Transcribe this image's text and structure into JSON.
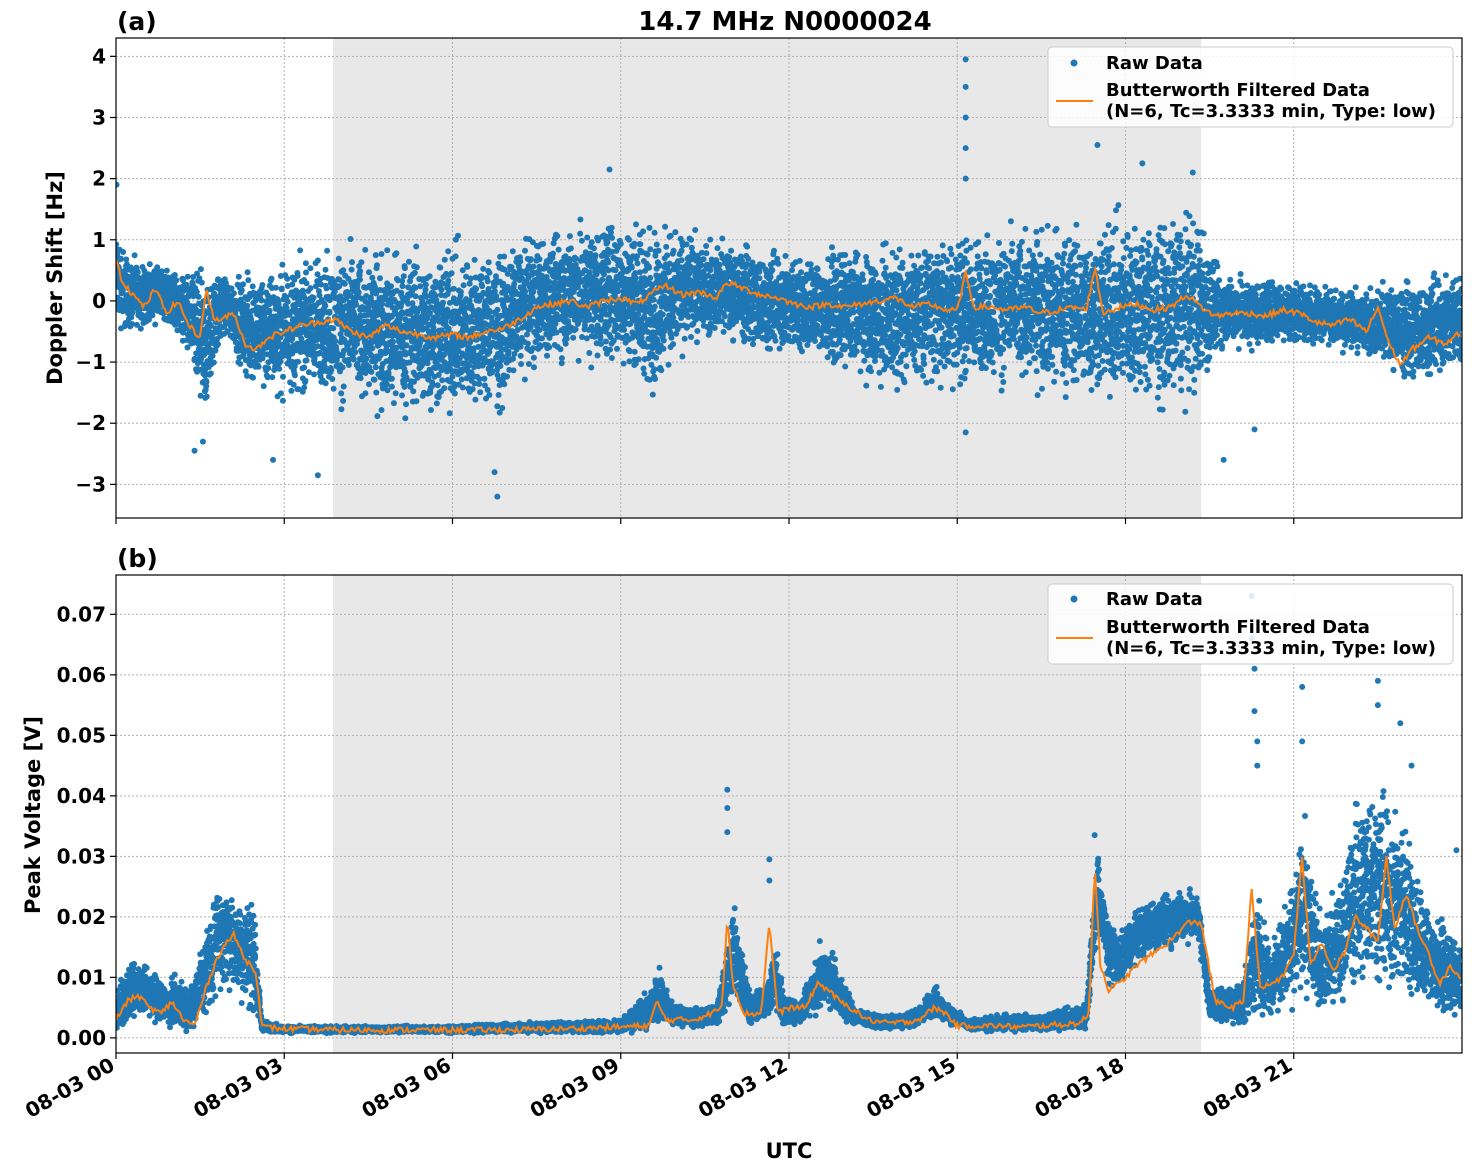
{
  "figure": {
    "title": "14.7 MHz N0000024",
    "xlabel": "UTC",
    "xticks": [
      "08-03 00",
      "08-03 03",
      "08-03 06",
      "08-03 09",
      "08-03 12",
      "08-03 15",
      "08-03 18",
      "08-03 21"
    ],
    "colors": {
      "raw": "#1f77b4",
      "filtered": "#ff7f0e",
      "shade": "#e8e8e8",
      "grid": "#b0b0b0"
    }
  },
  "legend": {
    "raw_label": "Raw Data",
    "filtered_label_line1": "Butterworth Filtered Data",
    "filtered_label_line2": "(N=6, Tc=3.3333 min, Type: low)"
  },
  "chart_data": [
    {
      "type": "scatter",
      "panel_label": "(a)",
      "title": "14.7 MHz N0000024",
      "xlabel": "",
      "ylabel": "Doppler Shift [Hz]",
      "x_unit": "hours UTC on 08-03",
      "xlim": [
        0,
        24
      ],
      "ylim": [
        -3.55,
        4.3
      ],
      "yticks": [
        -3,
        -2,
        -1,
        0,
        1,
        2,
        3,
        4
      ],
      "ytick_labels": [
        "−3",
        "−2",
        "−1",
        "0",
        "1",
        "2",
        "3",
        "4"
      ],
      "shaded_interval": [
        3.87,
        19.35
      ],
      "grid": true,
      "legend_position": "top-right",
      "series": [
        {
          "name": "Raw Data",
          "kind": "scatter-band",
          "x": [
            0,
            0.2,
            0.5,
            0.9,
            1.2,
            1.5,
            1.6,
            1.75,
            1.9,
            2.1,
            2.3,
            2.6,
            3.0,
            3.5,
            4.0,
            4.5,
            5.0,
            5.5,
            6.0,
            6.5,
            6.8,
            7.2,
            7.7,
            8.2,
            8.8,
            9.3,
            9.6,
            10.0,
            10.4,
            10.8,
            11.2,
            11.6,
            12.0,
            12.5,
            13.0,
            13.5,
            14.0,
            14.5,
            15.0,
            15.5,
            16.0,
            16.5,
            17.0,
            17.5,
            18.0,
            18.5,
            19.0,
            19.4,
            19.7,
            20.2,
            20.8,
            21.3,
            21.8,
            22.2,
            22.6,
            23.0,
            23.5,
            24.0
          ],
          "low": [
            -0.5,
            -0.6,
            -0.4,
            -0.4,
            -0.7,
            -1.9,
            -2.1,
            -1.2,
            -0.6,
            -0.8,
            -1.4,
            -1.6,
            -1.6,
            -1.6,
            -1.7,
            -1.8,
            -1.9,
            -2.0,
            -2.0,
            -1.9,
            -1.9,
            -1.2,
            -1.1,
            -1.0,
            -1.1,
            -1.2,
            -1.6,
            -0.9,
            -0.7,
            -0.6,
            -0.8,
            -0.9,
            -0.9,
            -1.0,
            -1.2,
            -1.4,
            -1.5,
            -1.4,
            -1.5,
            -1.4,
            -1.4,
            -1.5,
            -1.6,
            -1.7,
            -1.8,
            -1.8,
            -1.7,
            -1.5,
            -0.8,
            -0.8,
            -0.7,
            -0.7,
            -0.8,
            -0.9,
            -1.0,
            -1.4,
            -1.3,
            -1.1
          ],
          "high": [
            1.3,
            0.8,
            0.6,
            0.6,
            0.5,
            0.6,
            0.4,
            0.5,
            0.5,
            0.4,
            0.5,
            0.6,
            0.7,
            0.8,
            0.9,
            0.9,
            0.9,
            1.0,
            1.0,
            0.9,
            0.9,
            1.0,
            1.2,
            1.3,
            1.4,
            1.4,
            1.3,
            1.2,
            1.1,
            1.0,
            1.0,
            0.9,
            0.8,
            0.8,
            0.9,
            0.9,
            1.0,
            1.1,
            1.2,
            1.1,
            1.2,
            1.3,
            1.3,
            1.4,
            1.5,
            1.4,
            1.5,
            1.4,
            0.5,
            0.4,
            0.4,
            0.3,
            0.2,
            0.2,
            0.3,
            0.4,
            0.5,
            0.5
          ],
          "outliers": [
            [
              0.01,
              1.9
            ],
            [
              1.4,
              -2.45
            ],
            [
              1.55,
              -2.3
            ],
            [
              2.8,
              -2.6
            ],
            [
              3.6,
              -2.85
            ],
            [
              6.8,
              -3.2
            ],
            [
              6.75,
              -2.8
            ],
            [
              8.8,
              2.15
            ],
            [
              15.15,
              3.95
            ],
            [
              15.15,
              3.5
            ],
            [
              15.15,
              3.0
            ],
            [
              15.15,
              2.5
            ],
            [
              15.15,
              2.0
            ],
            [
              15.15,
              -2.15
            ],
            [
              17.5,
              2.55
            ],
            [
              18.3,
              2.25
            ],
            [
              19.2,
              2.1
            ],
            [
              19.75,
              -2.6
            ],
            [
              20.3,
              -2.1
            ]
          ]
        },
        {
          "name": "Butterworth Filtered Data (N=6, Tc=3.3333 min, Type: low)",
          "kind": "line",
          "x": [
            0,
            0.1,
            0.3,
            0.5,
            0.7,
            0.9,
            1.1,
            1.3,
            1.5,
            1.6,
            1.75,
            1.9,
            2.1,
            2.3,
            2.5,
            2.7,
            3.0,
            3.3,
            3.6,
            3.9,
            4.2,
            4.5,
            4.8,
            5.1,
            5.4,
            5.7,
            6.0,
            6.3,
            6.6,
            6.9,
            7.2,
            7.5,
            7.8,
            8.1,
            8.4,
            8.7,
            9.0,
            9.3,
            9.6,
            9.8,
            10.1,
            10.4,
            10.7,
            10.9,
            11.2,
            11.5,
            11.8,
            12.1,
            12.4,
            12.7,
            13.0,
            13.3,
            13.6,
            13.9,
            14.2,
            14.5,
            14.8,
            15.0,
            15.15,
            15.3,
            15.6,
            15.9,
            16.2,
            16.5,
            16.8,
            17.1,
            17.3,
            17.45,
            17.6,
            17.9,
            18.2,
            18.5,
            18.8,
            19.1,
            19.35,
            19.6,
            19.9,
            20.2,
            20.5,
            20.8,
            21.1,
            21.4,
            21.7,
            22.0,
            22.3,
            22.5,
            22.7,
            22.9,
            23.1,
            23.4,
            23.7,
            24.0
          ],
          "y": [
            0.7,
            0.35,
            0.1,
            -0.1,
            0.2,
            -0.2,
            0.0,
            -0.4,
            -0.6,
            0.2,
            -0.3,
            -0.3,
            -0.2,
            -0.7,
            -0.8,
            -0.6,
            -0.5,
            -0.4,
            -0.35,
            -0.3,
            -0.5,
            -0.6,
            -0.4,
            -0.5,
            -0.55,
            -0.6,
            -0.55,
            -0.6,
            -0.5,
            -0.45,
            -0.3,
            -0.1,
            -0.05,
            0.0,
            -0.1,
            0.0,
            0.05,
            -0.05,
            0.15,
            0.25,
            0.1,
            0.15,
            0.05,
            0.3,
            0.2,
            0.1,
            0.05,
            -0.05,
            -0.1,
            -0.05,
            -0.1,
            -0.05,
            0.0,
            0.05,
            -0.1,
            -0.05,
            -0.15,
            -0.15,
            0.45,
            -0.1,
            -0.1,
            -0.15,
            -0.1,
            -0.2,
            -0.15,
            -0.1,
            -0.15,
            0.55,
            -0.2,
            -0.1,
            -0.05,
            -0.15,
            -0.1,
            0.1,
            -0.1,
            -0.25,
            -0.2,
            -0.2,
            -0.25,
            -0.15,
            -0.2,
            -0.35,
            -0.4,
            -0.3,
            -0.5,
            -0.1,
            -0.7,
            -1.05,
            -0.8,
            -0.6,
            -0.7,
            -0.5
          ]
        }
      ]
    },
    {
      "type": "scatter",
      "panel_label": "(b)",
      "title": "",
      "xlabel": "UTC",
      "ylabel": "Peak Voltage [V]",
      "x_unit": "hours UTC on 08-03",
      "xlim": [
        0,
        24
      ],
      "ylim": [
        -0.0025,
        0.0765
      ],
      "yticks": [
        0.0,
        0.01,
        0.02,
        0.03,
        0.04,
        0.05,
        0.06,
        0.07
      ],
      "ytick_labels": [
        "0.00",
        "0.01",
        "0.02",
        "0.03",
        "0.04",
        "0.05",
        "0.06",
        "0.07"
      ],
      "shaded_interval": [
        3.87,
        19.35
      ],
      "grid": true,
      "legend_position": "top-right",
      "series": [
        {
          "name": "Raw Data",
          "kind": "scatter-band",
          "x": [
            0,
            0.3,
            0.6,
            0.9,
            1.1,
            1.3,
            1.6,
            1.8,
            2.0,
            2.2,
            2.45,
            2.6,
            3.0,
            4.0,
            5.0,
            6.0,
            7.0,
            8.0,
            9.0,
            9.5,
            9.7,
            9.9,
            10.3,
            10.7,
            10.85,
            11.0,
            11.3,
            11.6,
            11.75,
            11.9,
            12.2,
            12.5,
            12.7,
            12.9,
            13.2,
            13.6,
            14.0,
            14.3,
            14.6,
            14.8,
            15.2,
            15.8,
            16.4,
            17.0,
            17.3,
            17.5,
            17.7,
            17.9,
            18.2,
            18.6,
            19.0,
            19.3,
            19.5,
            19.8,
            20.1,
            20.35,
            20.6,
            20.9,
            21.2,
            21.5,
            21.8,
            22.1,
            22.4,
            22.7,
            23.0,
            23.3,
            23.6,
            23.8,
            24.0
          ],
          "low": [
            0.001,
            0.003,
            0.003,
            0.002,
            0.001,
            0.001,
            0.002,
            0.007,
            0.008,
            0.006,
            0.003,
            0.0008,
            0.0008,
            0.0008,
            0.0008,
            0.0008,
            0.0008,
            0.0008,
            0.0008,
            0.0012,
            0.0025,
            0.002,
            0.0015,
            0.002,
            0.003,
            0.006,
            0.002,
            0.0025,
            0.004,
            0.002,
            0.002,
            0.004,
            0.005,
            0.003,
            0.002,
            0.0015,
            0.0015,
            0.0018,
            0.003,
            0.0025,
            0.0012,
            0.001,
            0.001,
            0.001,
            0.001,
            0.016,
            0.009,
            0.008,
            0.013,
            0.014,
            0.015,
            0.016,
            0.003,
            0.002,
            0.002,
            0.004,
            0.003,
            0.005,
            0.006,
            0.004,
            0.005,
            0.007,
            0.008,
            0.006,
            0.006,
            0.004,
            0.004,
            0.003,
            0.003
          ],
          "high": [
            0.008,
            0.013,
            0.012,
            0.009,
            0.011,
            0.008,
            0.019,
            0.026,
            0.025,
            0.023,
            0.024,
            0.003,
            0.002,
            0.002,
            0.002,
            0.002,
            0.0025,
            0.0028,
            0.003,
            0.008,
            0.012,
            0.006,
            0.005,
            0.006,
            0.012,
            0.024,
            0.008,
            0.009,
            0.018,
            0.007,
            0.006,
            0.014,
            0.016,
            0.011,
            0.005,
            0.004,
            0.004,
            0.005,
            0.009,
            0.006,
            0.003,
            0.004,
            0.004,
            0.005,
            0.006,
            0.032,
            0.019,
            0.018,
            0.021,
            0.024,
            0.025,
            0.024,
            0.008,
            0.009,
            0.01,
            0.025,
            0.015,
            0.024,
            0.036,
            0.02,
            0.026,
            0.04,
            0.045,
            0.04,
            0.037,
            0.025,
            0.02,
            0.017,
            0.016
          ],
          "outliers": [
            [
              10.9,
              0.041
            ],
            [
              10.9,
              0.038
            ],
            [
              10.9,
              0.034
            ],
            [
              11.65,
              0.0295
            ],
            [
              11.65,
              0.026
            ],
            [
              12.55,
              0.016
            ],
            [
              17.45,
              0.0335
            ],
            [
              20.25,
              0.073
            ],
            [
              20.25,
              0.066
            ],
            [
              20.3,
              0.061
            ],
            [
              20.3,
              0.054
            ],
            [
              20.35,
              0.049
            ],
            [
              20.35,
              0.045
            ],
            [
              21.15,
              0.058
            ],
            [
              21.15,
              0.049
            ],
            [
              22.5,
              0.059
            ],
            [
              22.5,
              0.055
            ],
            [
              22.9,
              0.052
            ],
            [
              23.1,
              0.045
            ],
            [
              23.9,
              0.031
            ]
          ]
        },
        {
          "name": "Butterworth Filtered Data (N=6, Tc=3.3333 min, Type: low)",
          "kind": "line",
          "x": [
            0,
            0.2,
            0.4,
            0.6,
            0.8,
            1.0,
            1.2,
            1.4,
            1.6,
            1.75,
            1.9,
            2.1,
            2.3,
            2.5,
            2.6,
            3.0,
            4.0,
            5.0,
            6.0,
            7.0,
            8.0,
            9.0,
            9.5,
            9.65,
            9.8,
            10.0,
            10.3,
            10.6,
            10.8,
            10.9,
            11.0,
            11.2,
            11.5,
            11.65,
            11.8,
            12.0,
            12.3,
            12.5,
            12.7,
            12.9,
            13.1,
            13.4,
            13.7,
            14.0,
            14.3,
            14.6,
            14.8,
            15.0,
            15.3,
            15.7,
            16.1,
            16.5,
            16.9,
            17.2,
            17.35,
            17.45,
            17.55,
            17.7,
            17.9,
            18.2,
            18.5,
            18.8,
            19.1,
            19.35,
            19.6,
            19.9,
            20.1,
            20.25,
            20.4,
            20.6,
            20.8,
            21.0,
            21.15,
            21.3,
            21.5,
            21.7,
            21.9,
            22.1,
            22.3,
            22.5,
            22.65,
            22.8,
            23.0,
            23.2,
            23.4,
            23.6,
            23.8,
            24.0
          ],
          "y": [
            0.003,
            0.006,
            0.007,
            0.005,
            0.004,
            0.006,
            0.003,
            0.002,
            0.008,
            0.012,
            0.015,
            0.017,
            0.013,
            0.011,
            0.0018,
            0.0015,
            0.0013,
            0.0013,
            0.0013,
            0.0013,
            0.0015,
            0.0018,
            0.002,
            0.006,
            0.003,
            0.003,
            0.003,
            0.004,
            0.005,
            0.02,
            0.009,
            0.004,
            0.004,
            0.019,
            0.004,
            0.005,
            0.005,
            0.009,
            0.008,
            0.006,
            0.005,
            0.003,
            0.0025,
            0.0025,
            0.003,
            0.005,
            0.004,
            0.002,
            0.002,
            0.002,
            0.0018,
            0.002,
            0.0022,
            0.0025,
            0.004,
            0.029,
            0.012,
            0.008,
            0.009,
            0.012,
            0.014,
            0.016,
            0.019,
            0.019,
            0.006,
            0.005,
            0.006,
            0.025,
            0.008,
            0.009,
            0.01,
            0.014,
            0.03,
            0.012,
            0.016,
            0.011,
            0.014,
            0.02,
            0.018,
            0.016,
            0.03,
            0.018,
            0.024,
            0.018,
            0.014,
            0.009,
            0.012,
            0.009
          ]
        }
      ]
    }
  ]
}
